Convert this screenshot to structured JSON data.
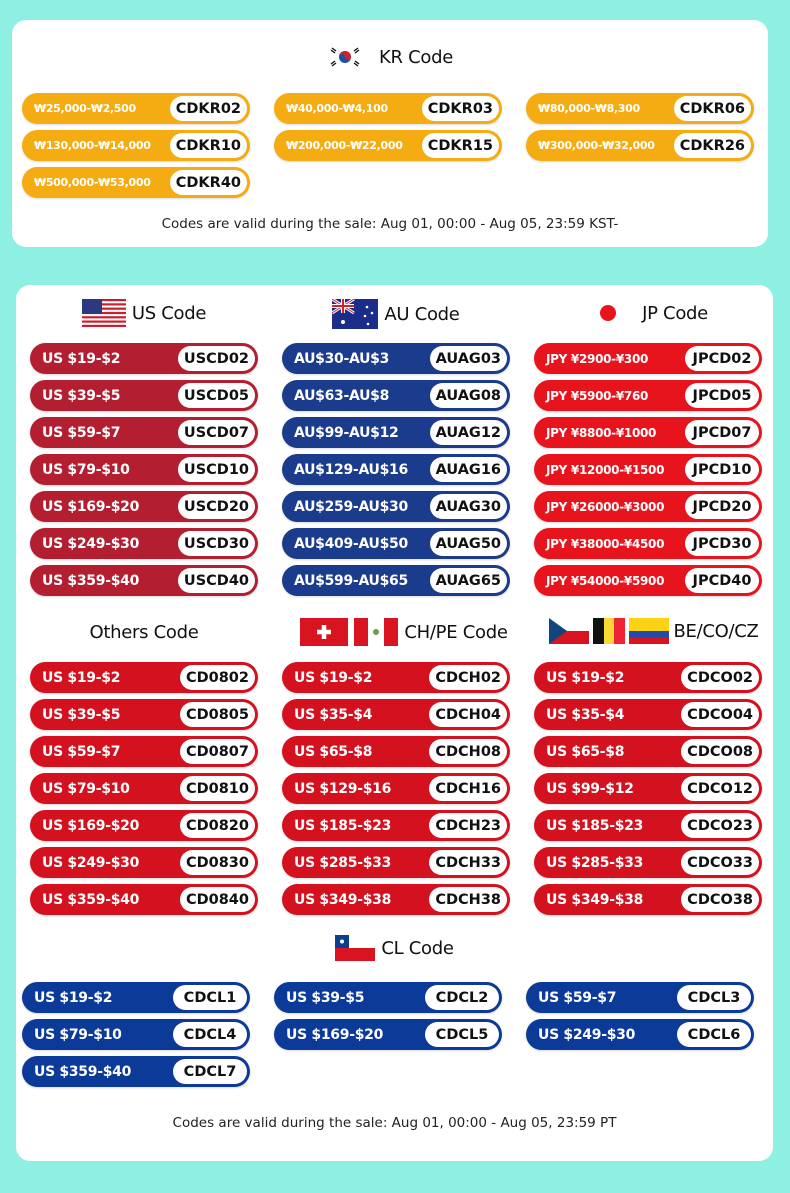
{
  "kr": {
    "title": "KR Code",
    "color": "#f5ab12",
    "note": "Codes are valid during the sale:   Aug 01, 00:00 - Aug 05, 23:59 KST-",
    "items": [
      [
        "₩25,000-₩2,500",
        "CDKR02"
      ],
      [
        "₩40,000-₩4,100",
        "CDKR03"
      ],
      [
        "₩80,000-₩8,300",
        "CDKR06"
      ],
      [
        "₩130,000-₩14,000",
        "CDKR10"
      ],
      [
        "₩200,000-₩22,000",
        "CDKR15"
      ],
      [
        "₩300,000-₩32,000",
        "CDKR26"
      ],
      [
        "₩500,000-₩53,000",
        "CDKR40"
      ]
    ]
  },
  "us": {
    "title": "US Code",
    "color": "#b31f30",
    "items": [
      [
        "US $19-$2",
        "USCD02"
      ],
      [
        "US $39-$5",
        "USCD05"
      ],
      [
        "US $59-$7",
        "USCD07"
      ],
      [
        "US $79-$10",
        "USCD10"
      ],
      [
        "US $169-$20",
        "USCD20"
      ],
      [
        "US $249-$30",
        "USCD30"
      ],
      [
        "US $359-$40",
        "USCD40"
      ]
    ]
  },
  "au": {
    "title": "AU Code",
    "color": "#1b3b8c",
    "items": [
      [
        "AU$30-AU$3",
        "AUAG03"
      ],
      [
        "AU$63-AU$8",
        "AUAG08"
      ],
      [
        "AU$99-AU$12",
        "AUAG12"
      ],
      [
        "AU$129-AU$16",
        "AUAG16"
      ],
      [
        "AU$259-AU$30",
        "AUAG30"
      ],
      [
        "AU$409-AU$50",
        "AUAG50"
      ],
      [
        "AU$599-AU$65",
        "AUAG65"
      ]
    ]
  },
  "jp": {
    "title": "JP Code",
    "color": "#e8141d",
    "items": [
      [
        "JPY ¥2900-¥300",
        "JPCD02"
      ],
      [
        "JPY ¥5900-¥760",
        "JPCD05"
      ],
      [
        "JPY ¥8800-¥1000",
        "JPCD07"
      ],
      [
        "JPY ¥12000-¥1500",
        "JPCD10"
      ],
      [
        "JPY ¥26000-¥3000",
        "JPCD20"
      ],
      [
        "JPY ¥38000-¥4500",
        "JPCD30"
      ],
      [
        "JPY ¥54000-¥5900",
        "JPCD40"
      ]
    ]
  },
  "others": {
    "title": "Others Code",
    "color": "#d3111f",
    "items": [
      [
        "US $19-$2",
        "CD0802"
      ],
      [
        "US $39-$5",
        "CD0805"
      ],
      [
        "US $59-$7",
        "CD0807"
      ],
      [
        "US $79-$10",
        "CD0810"
      ],
      [
        "US $169-$20",
        "CD0820"
      ],
      [
        "US $249-$30",
        "CD0830"
      ],
      [
        "US $359-$40",
        "CD0840"
      ]
    ]
  },
  "chpe": {
    "title": "CH/PE Code",
    "color": "#d3111f",
    "items": [
      [
        "US $19-$2",
        "CDCH02"
      ],
      [
        "US $35-$4",
        "CDCH04"
      ],
      [
        "US $65-$8",
        "CDCH08"
      ],
      [
        "US $129-$16",
        "CDCH16"
      ],
      [
        "US $185-$23",
        "CDCH23"
      ],
      [
        "US $285-$33",
        "CDCH33"
      ],
      [
        "US $349-$38",
        "CDCH38"
      ]
    ]
  },
  "beco": {
    "title": "BE/CO/CZ",
    "color": "#d3111f",
    "items": [
      [
        "US $19-$2",
        "CDCO02"
      ],
      [
        "US $35-$4",
        "CDCO04"
      ],
      [
        "US $65-$8",
        "CDCO08"
      ],
      [
        "US $99-$12",
        "CDCO12"
      ],
      [
        "US $185-$23",
        "CDCO23"
      ],
      [
        "US $285-$33",
        "CDCO33"
      ],
      [
        "US $349-$38",
        "CDCO38"
      ]
    ]
  },
  "cl": {
    "title": "CL Code",
    "color": "#0c3a99",
    "items": [
      [
        "US $19-$2",
        "CDCL1"
      ],
      [
        "US $39-$5",
        "CDCL2"
      ],
      [
        "US $59-$7",
        "CDCL3"
      ],
      [
        "US $79-$10",
        "CDCL4"
      ],
      [
        "US $169-$20",
        "CDCL5"
      ],
      [
        "US $249-$30",
        "CDCL6"
      ],
      [
        "US $359-$40",
        "CDCL7"
      ]
    ]
  },
  "footer_note": "Codes are valid during the sale: Aug 01, 00:00 - Aug 05, 23:59 PT"
}
